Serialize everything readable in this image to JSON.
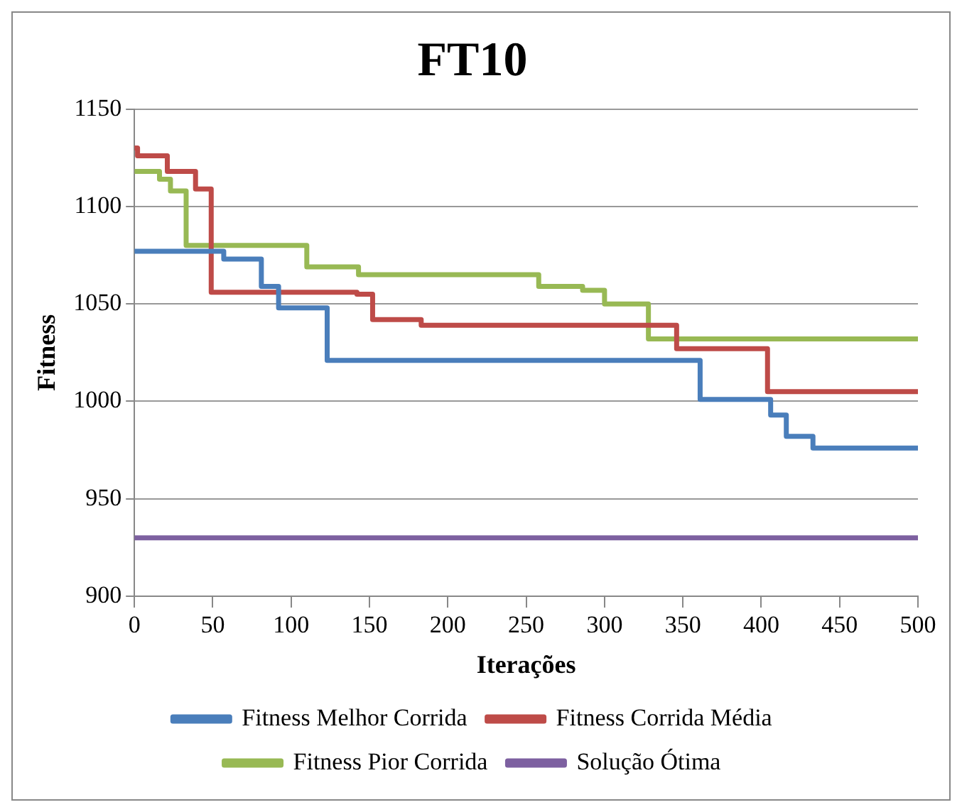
{
  "chart_data": {
    "type": "step",
    "title": "FT10",
    "xlabel": "Iterações",
    "ylabel": "Fitness",
    "xlim": [
      0,
      500
    ],
    "xticks": [
      0,
      50,
      100,
      150,
      200,
      250,
      300,
      350,
      400,
      450,
      500
    ],
    "ylim": [
      900,
      1150
    ],
    "yticks": [
      900,
      950,
      1000,
      1050,
      1100,
      1150
    ],
    "grid": "y",
    "legend": "bottom",
    "marker": "none",
    "line_style": "solid",
    "series": [
      {
        "name": "Fitness Melhor Corrida",
        "color": "#4a7ebb",
        "x": [
          0,
          57,
          81,
          92,
          123,
          361,
          406,
          416,
          433,
          500
        ],
        "values": [
          1077,
          1073,
          1059,
          1048,
          1021,
          1001,
          993,
          982,
          976,
          976
        ]
      },
      {
        "name": "Fitness Corrida Média",
        "color": "#be4b48",
        "x": [
          0,
          2,
          21,
          39,
          49,
          142,
          152,
          183,
          346,
          404,
          500
        ],
        "values": [
          1130,
          1126,
          1118,
          1109,
          1056,
          1055,
          1042,
          1039,
          1027,
          1005,
          1005
        ]
      },
      {
        "name": "Fitness Pior Corrida",
        "color": "#98b954",
        "x": [
          0,
          16,
          23,
          33,
          110,
          143,
          258,
          286,
          300,
          328,
          500
        ],
        "values": [
          1118,
          1114,
          1108,
          1080,
          1069,
          1065,
          1059,
          1057,
          1050,
          1032,
          1032
        ]
      },
      {
        "name": "Solução Ótima",
        "color": "#7d60a0",
        "x": [
          0,
          500
        ],
        "values": [
          930,
          930
        ]
      }
    ]
  }
}
